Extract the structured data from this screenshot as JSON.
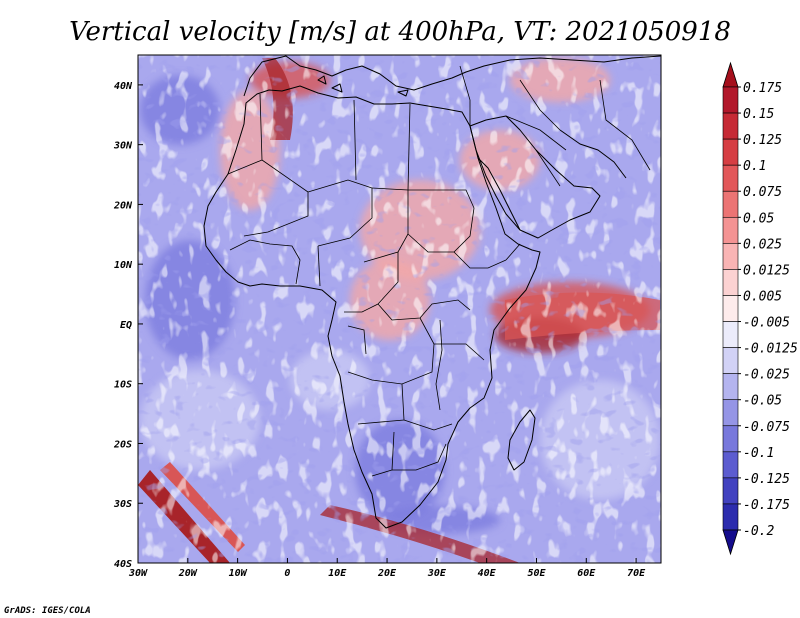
{
  "title": "Vertical velocity [m/s] at 400hPa, VT: 2021050918",
  "credit": "GrADS: IGES/COLA",
  "map": {
    "lon_range": [
      -30,
      75
    ],
    "lat_range": [
      -40,
      45
    ],
    "x_ticks": [
      {
        "lon": -30,
        "label": "30W"
      },
      {
        "lon": -20,
        "label": "20W"
      },
      {
        "lon": -10,
        "label": "10W"
      },
      {
        "lon": 0,
        "label": "0"
      },
      {
        "lon": 10,
        "label": "10E"
      },
      {
        "lon": 20,
        "label": "20E"
      },
      {
        "lon": 30,
        "label": "30E"
      },
      {
        "lon": 40,
        "label": "40E"
      },
      {
        "lon": 50,
        "label": "50E"
      },
      {
        "lon": 60,
        "label": "60E"
      },
      {
        "lon": 70,
        "label": "70E"
      }
    ],
    "y_ticks": [
      {
        "lat": 40,
        "label": "40N"
      },
      {
        "lat": 30,
        "label": "30N"
      },
      {
        "lat": 20,
        "label": "20N"
      },
      {
        "lat": 10,
        "label": "10N"
      },
      {
        "lat": 0,
        "label": "EQ"
      },
      {
        "lat": -10,
        "label": "10S"
      },
      {
        "lat": -20,
        "label": "20S"
      },
      {
        "lat": -30,
        "label": "30S"
      },
      {
        "lat": -40,
        "label": "40S"
      }
    ]
  },
  "colorbar": {
    "levels": [
      {
        "label": "0.175",
        "color": "#b2182b"
      },
      {
        "label": "0.15",
        "color": "#c62a35"
      },
      {
        "label": "0.125",
        "color": "#d63e43"
      },
      {
        "label": "0.1",
        "color": "#e25759"
      },
      {
        "label": "0.075",
        "color": "#ec7474"
      },
      {
        "label": "0.05",
        "color": "#f49393"
      },
      {
        "label": "0.025",
        "color": "#f9b4b4"
      },
      {
        "label": "0.0125",
        "color": "#fcd2d2"
      },
      {
        "label": "0.005",
        "color": "#feecec"
      },
      {
        "label": "-0.005",
        "color": "#ececfb"
      },
      {
        "label": "-0.0125",
        "color": "#d2d2f6"
      },
      {
        "label": "-0.025",
        "color": "#b4b4ef"
      },
      {
        "label": "-0.05",
        "color": "#9595e6"
      },
      {
        "label": "-0.075",
        "color": "#7878dc"
      },
      {
        "label": "-0.1",
        "color": "#5c5cd0"
      },
      {
        "label": "-0.125",
        "color": "#4242c0"
      },
      {
        "label": "-0.175",
        "color": "#2c2cae"
      },
      {
        "label": "-0.2",
        "color": "#1e1e9a"
      }
    ],
    "top_color": "#a50f1c",
    "bottom_color": "#140c8c"
  },
  "field_colors": {
    "background": "#a9a8ee",
    "blue_dark": "#7d7dde",
    "blue_light": "#c8c8f4",
    "pink": "#f2a8a8",
    "red": "#d85656",
    "dark_red": "#a8242a",
    "white": "#f4f0f4"
  }
}
